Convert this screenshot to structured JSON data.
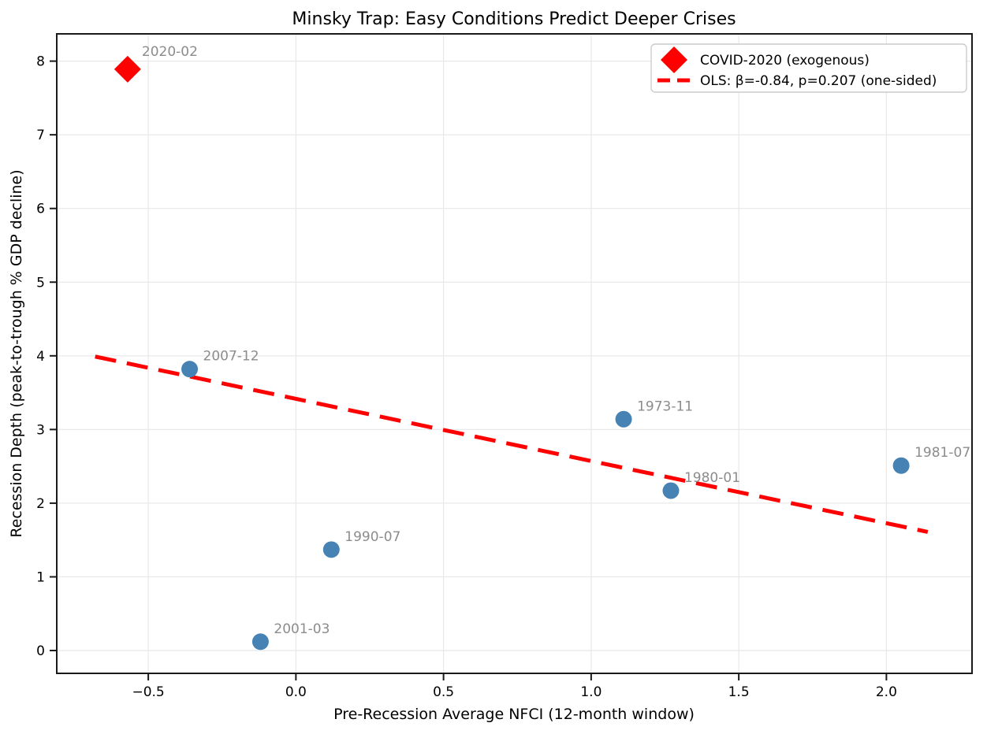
{
  "chart_data": {
    "type": "scatter",
    "title": "Minsky Trap: Easy Conditions Predict Deeper Crises",
    "xlabel": "Pre-Recession Average NFCI (12-month window)",
    "ylabel": "Recession Depth (peak-to-trough % GDP decline)",
    "xlim": [
      -0.81,
      2.29
    ],
    "ylim": [
      -0.31,
      8.37
    ],
    "grid": true,
    "legend_position": "upper right",
    "xticks": {
      "values": [
        -0.5,
        0.0,
        0.5,
        1.0,
        1.5,
        2.0
      ],
      "labels": [
        "−0.5",
        "0.0",
        "0.5",
        "1.0",
        "1.5",
        "2.0"
      ]
    },
    "yticks": {
      "values": [
        0,
        1,
        2,
        3,
        4,
        5,
        6,
        7,
        8
      ],
      "labels": [
        "0",
        "1",
        "2",
        "3",
        "4",
        "5",
        "6",
        "7",
        "8"
      ]
    },
    "points": [
      {
        "label": "1973-11",
        "x": 1.11,
        "y": 3.14,
        "marker": "circle",
        "series": "recessions"
      },
      {
        "label": "1980-01",
        "x": 1.27,
        "y": 2.17,
        "marker": "circle",
        "series": "recessions"
      },
      {
        "label": "1981-07",
        "x": 2.05,
        "y": 2.51,
        "marker": "circle",
        "series": "recessions"
      },
      {
        "label": "1990-07",
        "x": 0.12,
        "y": 1.37,
        "marker": "circle",
        "series": "recessions"
      },
      {
        "label": "2001-03",
        "x": -0.12,
        "y": 0.12,
        "marker": "circle",
        "series": "recessions"
      },
      {
        "label": "2007-12",
        "x": -0.36,
        "y": 3.82,
        "marker": "circle",
        "series": "recessions"
      },
      {
        "label": "2020-02",
        "x": -0.57,
        "y": 7.89,
        "marker": "diamond",
        "series": "covid-exogenous"
      }
    ],
    "ols_line": {
      "beta": -0.84,
      "p_value": 0.207,
      "x_start": -0.68,
      "y_start": 3.99,
      "x_end": 2.14,
      "y_end": 1.61
    },
    "legend": [
      {
        "marker": "diamond",
        "label": "COVID-2020 (exogenous)"
      },
      {
        "marker": "dashed-line",
        "label": "OLS: β=-0.84, p=0.207 (one-sided)"
      }
    ],
    "colors": {
      "recession_point": "#4682b4",
      "covid_point": "#ff0000",
      "ols_line": "#ff0000",
      "point_label": "#8c8c8c",
      "grid": "#e8e8e8",
      "spine": "#1a1a1a",
      "tick_text": "#000000",
      "legend_border": "#cccccc"
    }
  }
}
